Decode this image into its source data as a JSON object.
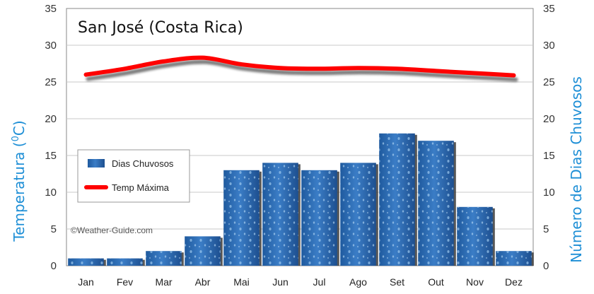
{
  "chart_data": {
    "type": "bar",
    "title": "San José (Costa Rica)",
    "ylabel_left": "Temperatura  (°C)",
    "ylabel_left_parts": {
      "main": "Temperatura  (",
      "sup": "0",
      "unit": "C)"
    },
    "ylabel_right": "Número de Dias Chuvosos",
    "ylim": [
      0,
      35
    ],
    "yticks": [
      0,
      5,
      10,
      15,
      20,
      25,
      30,
      35
    ],
    "grid": true,
    "legend_placement": "left-middle",
    "categories": [
      "Jan",
      "Fev",
      "Mar",
      "Abr",
      "Mai",
      "Jun",
      "Jul",
      "Ago",
      "Set",
      "Out",
      "Nov",
      "Dez"
    ],
    "series": [
      {
        "name": "Dias Chuvosos",
        "kind": "bar",
        "axis": "right",
        "color": "#2f6db5",
        "values": [
          1,
          1,
          2,
          4,
          13,
          14,
          13,
          14,
          18,
          17,
          8,
          2
        ]
      },
      {
        "name": "Temp Máxima",
        "kind": "line",
        "axis": "left",
        "color": "#ff0000",
        "values": [
          26,
          26.8,
          27.8,
          28.3,
          27.4,
          26.9,
          26.8,
          26.9,
          26.8,
          26.5,
          26.2,
          25.9
        ]
      }
    ],
    "watermark": "©Weather-Guide.com"
  }
}
